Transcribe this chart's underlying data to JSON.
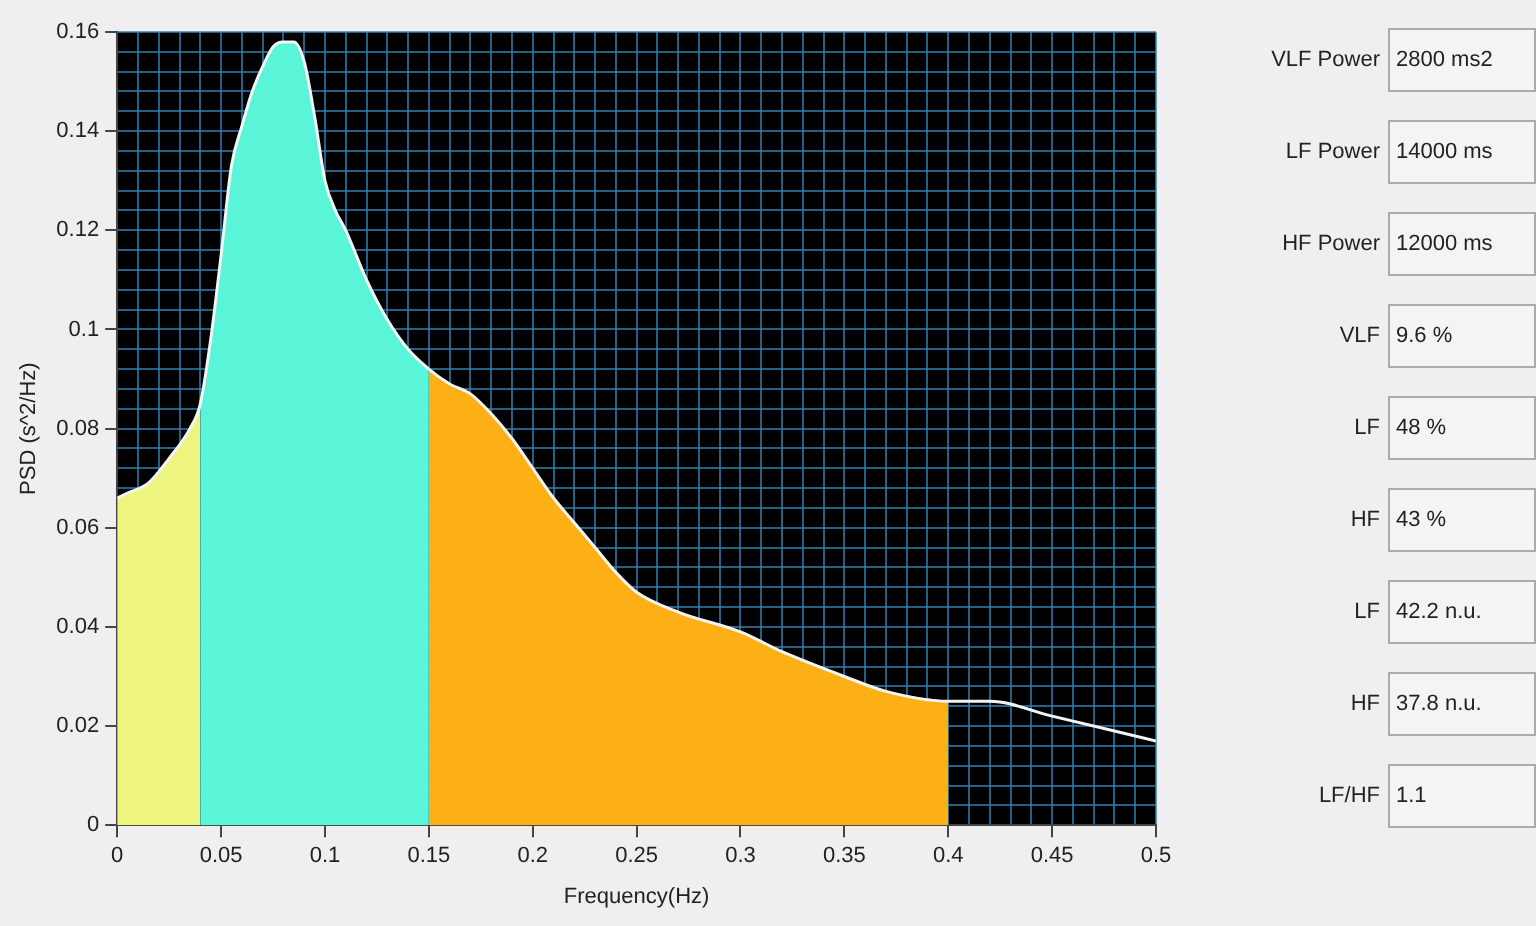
{
  "chart_data": [
    {
      "type": "area",
      "xlabel": "Frequency(Hz)",
      "ylabel": "PSD (s^2/Hz)",
      "xlim": [
        0,
        0.5
      ],
      "xticks": [
        0,
        {
          "value": 0.01,
          "label": null
        },
        {
          "value": 0.02,
          "label": null
        },
        {
          "value": 0.03,
          "label": null
        },
        {
          "value": 0.04,
          "label": null
        },
        0.05,
        {
          "value": 0.06,
          "label": null
        },
        {
          "value": 0.07,
          "label": null
        },
        {
          "value": 0.08,
          "label": null
        },
        {
          "value": 0.09,
          "label": null
        },
        0.1,
        {
          "value": 0.11,
          "label": null
        },
        {
          "value": 0.12,
          "label": null
        },
        {
          "value": 0.13,
          "label": null
        },
        {
          "value": 0.14,
          "label": null
        },
        0.15,
        {
          "value": 0.16,
          "label": null
        },
        {
          "value": 0.17,
          "label": null
        },
        {
          "value": 0.18,
          "label": null
        },
        {
          "value": 0.19,
          "label": null
        },
        0.2,
        {
          "value": 0.21,
          "label": null
        },
        {
          "value": 0.22,
          "label": null
        },
        {
          "value": 0.23,
          "label": null
        },
        {
          "value": 0.24,
          "label": null
        },
        0.25,
        {
          "value": 0.26,
          "label": null
        },
        {
          "value": 0.27,
          "label": null
        },
        {
          "value": 0.28,
          "label": null
        },
        {
          "value": 0.29,
          "label": null
        },
        0.3,
        {
          "value": 0.31,
          "label": null
        },
        {
          "value": 0.32,
          "label": null
        },
        {
          "value": 0.33,
          "label": null
        },
        {
          "value": 0.34,
          "label": null
        },
        0.35,
        {
          "value": 0.36,
          "label": null
        },
        {
          "value": 0.37,
          "label": null
        },
        {
          "value": 0.38,
          "label": null
        },
        {
          "value": 0.39,
          "label": null
        },
        0.4,
        {
          "value": 0.41,
          "label": null
        },
        {
          "value": 0.42,
          "label": null
        },
        {
          "value": 0.43,
          "label": null
        },
        {
          "value": 0.44,
          "label": null
        },
        0.45,
        {
          "value": 0.46,
          "label": null
        },
        {
          "value": 0.47,
          "label": null
        },
        {
          "value": 0.48,
          "label": null
        },
        {
          "value": 0.49,
          "label": null
        },
        0.5
      ],
      "ylim": [
        0,
        0.16
      ],
      "yticks": [
        0,
        {
          "value": 0.004,
          "label": null
        },
        {
          "value": 0.008,
          "label": null
        },
        {
          "value": 0.012,
          "label": null
        },
        {
          "value": 0.016,
          "label": null
        },
        0.02,
        {
          "value": 0.024,
          "label": null
        },
        {
          "value": 0.028,
          "label": null
        },
        {
          "value": 0.032,
          "label": null
        },
        {
          "value": 0.036,
          "label": null
        },
        0.04,
        {
          "value": 0.044,
          "label": null
        },
        {
          "value": 0.048,
          "label": null
        },
        {
          "value": 0.052,
          "label": null
        },
        {
          "value": 0.056,
          "label": null
        },
        0.06,
        {
          "value": 0.064,
          "label": null
        },
        {
          "value": 0.068,
          "label": null
        },
        {
          "value": 0.072,
          "label": null
        },
        {
          "value": 0.076,
          "label": null
        },
        0.08,
        {
          "value": 0.084,
          "label": null
        },
        {
          "value": 0.088,
          "label": null
        },
        {
          "value": 0.092,
          "label": null
        },
        {
          "value": 0.096,
          "label": null
        },
        0.1,
        {
          "value": 0.104,
          "label": null
        },
        {
          "value": 0.108,
          "label": null
        },
        {
          "value": 0.112,
          "label": null
        },
        {
          "value": 0.116,
          "label": null
        },
        0.12,
        {
          "value": 0.124,
          "label": null
        },
        {
          "value": 0.128,
          "label": null
        },
        {
          "value": 0.132,
          "label": null
        },
        {
          "value": 0.136,
          "label": null
        },
        0.14,
        {
          "value": 0.144,
          "label": null
        },
        {
          "value": 0.148,
          "label": null
        },
        {
          "value": 0.152,
          "label": null
        },
        {
          "value": 0.156,
          "label": null
        },
        0.16
      ],
      "grid": true,
      "marker": "none",
      "line_style": "solid",
      "series": [
        {
          "type": "area",
          "color": "#eef57e",
          "x": [
            0,
            0.005,
            0.015,
            0.025,
            0.035,
            0.04
          ],
          "values": [
            0.066,
            0.067,
            0.069,
            0.074,
            0.08,
            0.085
          ]
        },
        {
          "type": "area",
          "color": "#5af5d8",
          "x": [
            0.04,
            0.045,
            0.05,
            0.055,
            0.06,
            0.065,
            0.07,
            0.075,
            0.08,
            0.085,
            0.09,
            0.095,
            0.1,
            0.105,
            0.11,
            0.12,
            0.13,
            0.14,
            0.15
          ],
          "values": [
            0.085,
            0.098,
            0.115,
            0.133,
            0.141,
            0.148,
            0.153,
            0.157,
            0.158,
            0.158,
            0.154,
            0.143,
            0.13,
            0.124,
            0.12,
            0.11,
            0.102,
            0.096,
            0.092
          ]
        },
        {
          "type": "area",
          "color": "#fdb015",
          "x": [
            0.15,
            0.16,
            0.17,
            0.18,
            0.19,
            0.2,
            0.21,
            0.22,
            0.23,
            0.24,
            0.25,
            0.27,
            0.3,
            0.32,
            0.35,
            0.37,
            0.4
          ],
          "values": [
            0.092,
            0.089,
            0.087,
            0.083,
            0.078,
            0.072,
            0.066,
            0.061,
            0.056,
            0.051,
            0.047,
            0.043,
            0.039,
            0.035,
            0.03,
            0.027,
            0.025
          ]
        },
        {
          "type": "line",
          "color": "#f4f4f4",
          "x": [
            0,
            0.005,
            0.015,
            0.025,
            0.035,
            0.04,
            0.045,
            0.05,
            0.055,
            0.06,
            0.065,
            0.07,
            0.075,
            0.08,
            0.085,
            0.09,
            0.095,
            0.1,
            0.105,
            0.11,
            0.12,
            0.13,
            0.14,
            0.15,
            0.16,
            0.17,
            0.18,
            0.19,
            0.2,
            0.21,
            0.22,
            0.23,
            0.24,
            0.25,
            0.27,
            0.3,
            0.32,
            0.35,
            0.37,
            0.4,
            0.42,
            0.45,
            0.48,
            0.5
          ],
          "values": [
            0.066,
            0.067,
            0.069,
            0.074,
            0.08,
            0.085,
            0.098,
            0.115,
            0.133,
            0.141,
            0.148,
            0.153,
            0.157,
            0.158,
            0.158,
            0.154,
            0.143,
            0.13,
            0.124,
            0.12,
            0.11,
            0.102,
            0.096,
            0.092,
            0.089,
            0.087,
            0.083,
            0.078,
            0.072,
            0.066,
            0.061,
            0.056,
            0.051,
            0.047,
            0.043,
            0.039,
            0.035,
            0.03,
            0.027,
            0.025,
            0.025,
            0.022,
            0.019,
            0.017
          ]
        }
      ]
    },
    {
      "type": "other",
      "annotations": [
        "VLF Power",
        "2800 ms2",
        "LF Power",
        "14000 ms",
        "HF Power",
        "12000 ms",
        "VLF",
        "9.6 %",
        "LF",
        "48 %",
        "HF",
        "43 %",
        "LF",
        "42.2 n.u.",
        "HF",
        "37.8 n.u.",
        "LF/HF",
        "1.1"
      ]
    }
  ]
}
